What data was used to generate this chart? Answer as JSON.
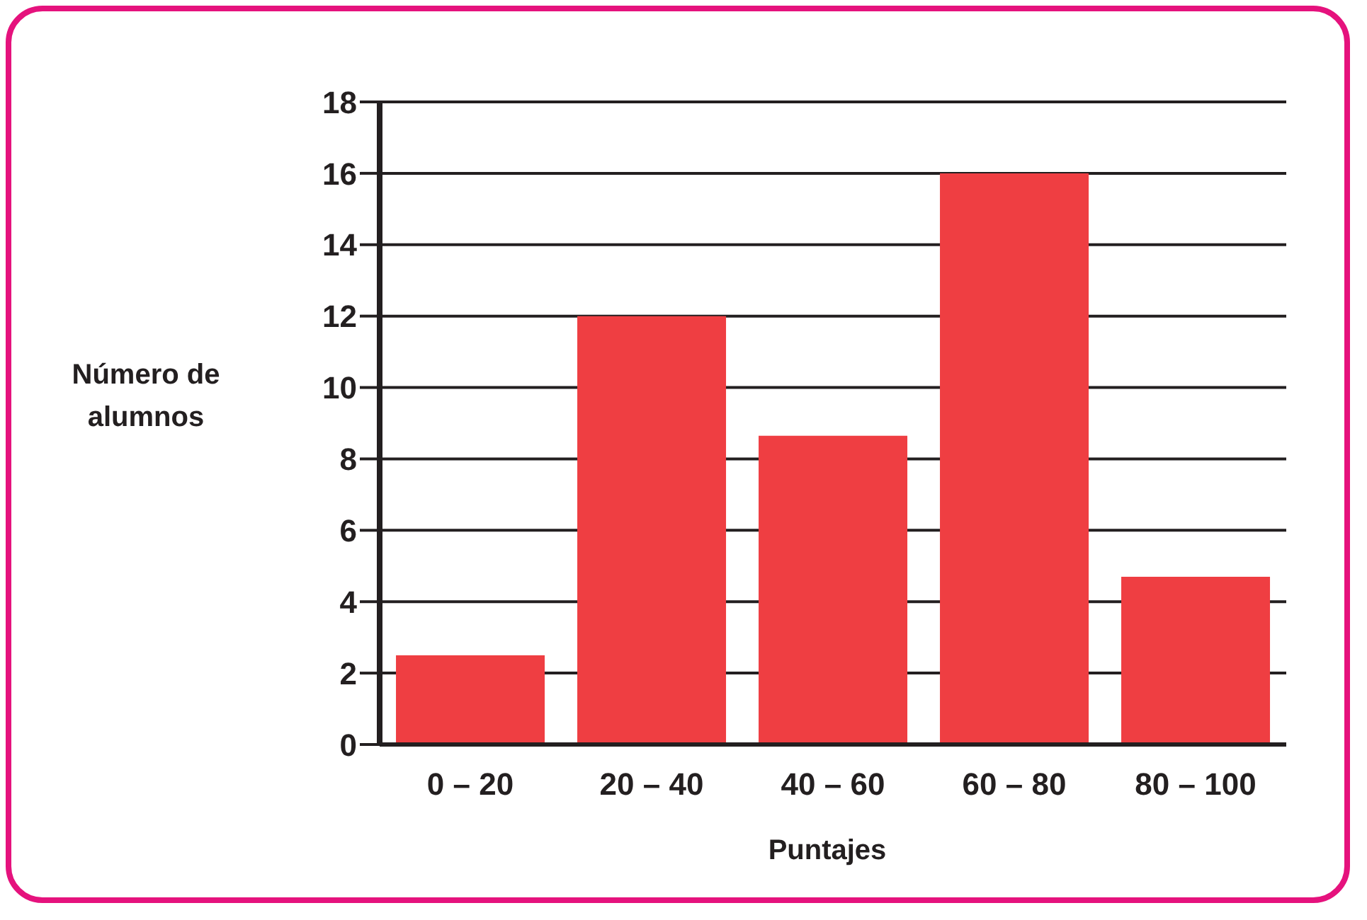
{
  "chart_data": {
    "type": "bar",
    "xlabel": "Puntajes",
    "ylabel": "Número de alumnos",
    "categories": [
      "0 – 20",
      "20 – 40",
      "40 – 60",
      "60 – 80",
      "80 – 100"
    ],
    "values": [
      2.5,
      12,
      8.65,
      16,
      4.7
    ],
    "color": "#ef3e42",
    "ylim": [
      0,
      18
    ],
    "yticks": [
      0,
      2,
      4,
      6,
      8,
      10,
      12,
      14,
      16,
      18
    ],
    "grid": "y"
  }
}
